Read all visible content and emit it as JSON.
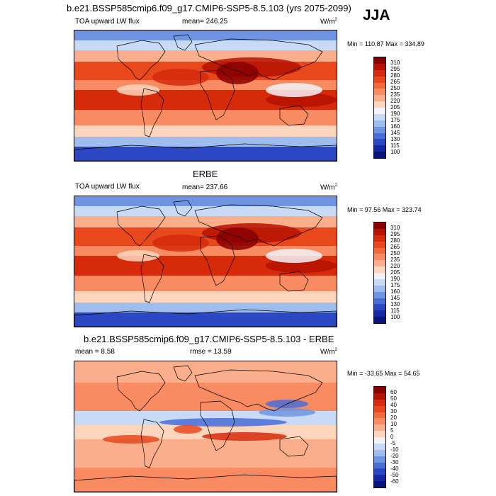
{
  "season": "JJA",
  "panels": [
    {
      "title": "b.e21.BSSP585cmip6.f09_g17.CMIP6-SSP5-8.5.103 (yrs 2075-2099)",
      "left": "TOA upward LW flux",
      "center": "mean= 246.25",
      "units": "W/m",
      "units_exp": "2",
      "minmax": "Min = 110.87 Max = 334.89",
      "kind": "abs",
      "ticks": [
        "310",
        "295",
        "280",
        "265",
        "250",
        "235",
        "220",
        "205",
        "190",
        "175",
        "160",
        "145",
        "130",
        "115",
        "100"
      ],
      "colors": [
        "#8a0000",
        "#b51200",
        "#d62a0a",
        "#e8481c",
        "#f26a3c",
        "#f88b62",
        "#fbae8c",
        "#fdd5bd",
        "#f4f2f8",
        "#c8daf5",
        "#9fbcef",
        "#6f94e2",
        "#4b6dd6",
        "#2c47c4",
        "#1428a6",
        "#07157a"
      ]
    },
    {
      "title": "ERBE",
      "left": "TOA upward LW flux",
      "center": "mean= 237.66",
      "units": "W/m",
      "units_exp": "2",
      "minmax": "Min =  97.56 Max = 323.74",
      "kind": "abs",
      "ticks": [
        "310",
        "295",
        "280",
        "265",
        "250",
        "235",
        "220",
        "205",
        "190",
        "175",
        "160",
        "145",
        "130",
        "115",
        "100"
      ],
      "colors": [
        "#8a0000",
        "#b51200",
        "#d62a0a",
        "#e8481c",
        "#f26a3c",
        "#f88b62",
        "#fbae8c",
        "#fdd5bd",
        "#f4f2f8",
        "#c8daf5",
        "#9fbcef",
        "#6f94e2",
        "#4b6dd6",
        "#2c47c4",
        "#1428a6",
        "#07157a"
      ]
    },
    {
      "title": "b.e21.BSSP585cmip6.f09_g17.CMIP6-SSP5-8.5.103 - ERBE",
      "left": "mean =   8.58",
      "center": "rmse =  13.59",
      "units": "W/m",
      "units_exp": "2",
      "minmax": "Min = -33.65 Max =  54.65",
      "kind": "diff",
      "ticks": [
        "60",
        "50",
        "40",
        "30",
        "20",
        "10",
        "5",
        "0",
        "-5",
        "-10",
        "-20",
        "-30",
        "-40",
        "-50",
        "-60"
      ],
      "colors": [
        "#8a0000",
        "#b51200",
        "#d62a0a",
        "#e8481c",
        "#f26a3c",
        "#f88b62",
        "#fbae8c",
        "#fdd5bd",
        "#f4f2f8",
        "#c8daf5",
        "#9fbcef",
        "#6f94e2",
        "#4b6dd6",
        "#2c47c4",
        "#1428a6",
        "#07157a"
      ]
    }
  ]
}
